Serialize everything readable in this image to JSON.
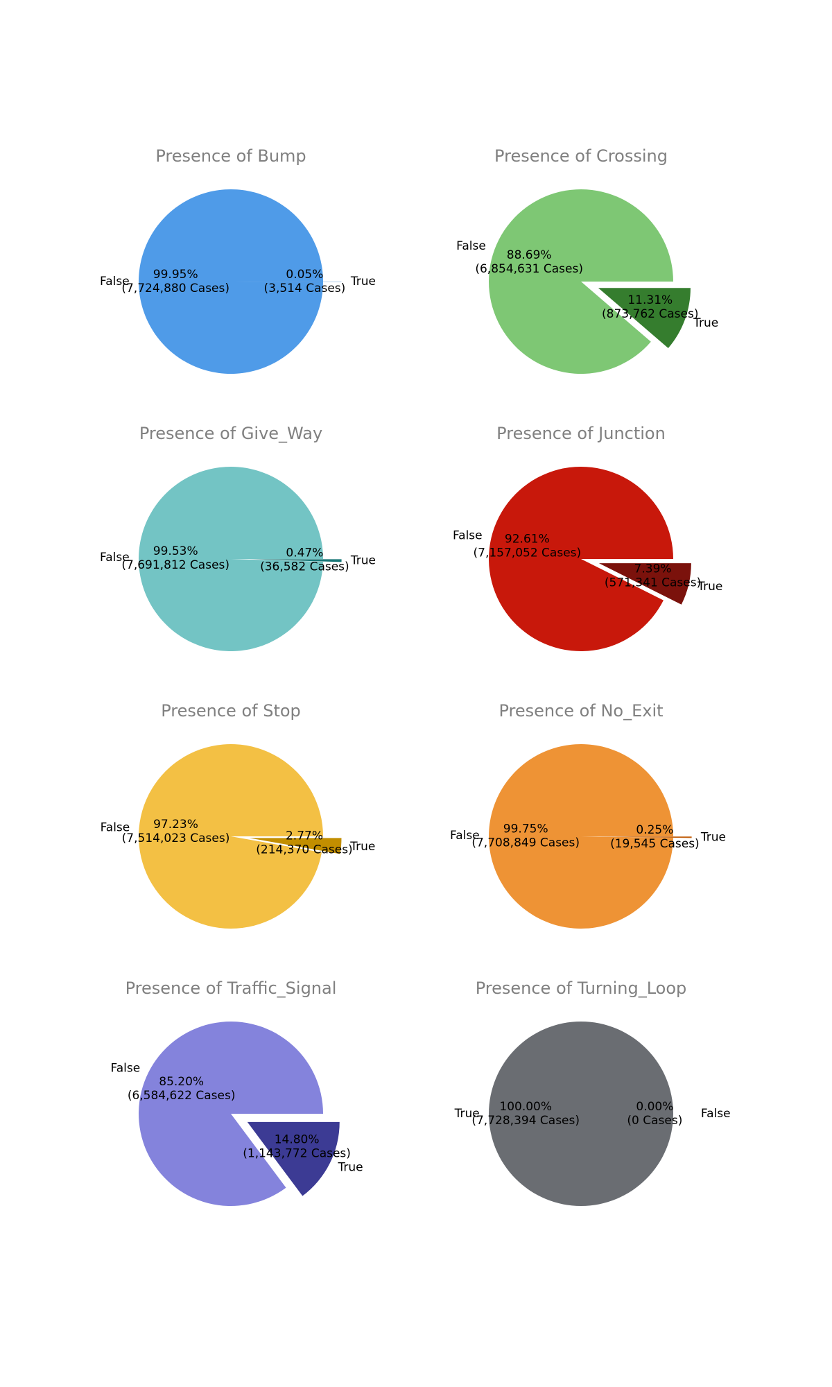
{
  "chart_data": [
    {
      "type": "pie",
      "title": "Presence of Bump",
      "slices": [
        {
          "label": "False",
          "value": 7724880,
          "pct_text": "99.95%",
          "cases_text": "(7,724,880 Cases)",
          "color": "#4f9be8",
          "exploded": false
        },
        {
          "label": "True",
          "value": 3514,
          "pct_text": "0.05%",
          "cases_text": "(3,514 Cases)",
          "color": "#1f6fc4",
          "exploded": true
        }
      ]
    },
    {
      "type": "pie",
      "title": "Presence of Crossing",
      "slices": [
        {
          "label": "False",
          "value": 6854631,
          "pct_text": "88.69%",
          "cases_text": "(6,854,631 Cases)",
          "color": "#7ec774",
          "exploded": false
        },
        {
          "label": "True",
          "value": 873762,
          "pct_text": "11.31%",
          "cases_text": "(873,762 Cases)",
          "color": "#357d2e",
          "exploded": true
        }
      ]
    },
    {
      "type": "pie",
      "title": "Presence of Give_Way",
      "slices": [
        {
          "label": "False",
          "value": 7691812,
          "pct_text": "99.53%",
          "cases_text": "(7,691,812 Cases)",
          "color": "#73c4c4",
          "exploded": false
        },
        {
          "label": "True",
          "value": 36582,
          "pct_text": "0.47%",
          "cases_text": "(36,582 Cases)",
          "color": "#197878",
          "exploded": true
        }
      ]
    },
    {
      "type": "pie",
      "title": "Presence of Junction",
      "slices": [
        {
          "label": "False",
          "value": 7157052,
          "pct_text": "92.61%",
          "cases_text": "(7,157,052 Cases)",
          "color": "#c8180b",
          "exploded": false
        },
        {
          "label": "True",
          "value": 571341,
          "pct_text": "7.39%",
          "cases_text": "(571,341 Cases)",
          "color": "#7b120c",
          "exploded": true
        }
      ]
    },
    {
      "type": "pie",
      "title": "Presence of Stop",
      "slices": [
        {
          "label": "False",
          "value": 7514023,
          "pct_text": "97.23%",
          "cases_text": "(7,514,023 Cases)",
          "color": "#f3c044",
          "exploded": false
        },
        {
          "label": "True",
          "value": 214370,
          "pct_text": "2.77%",
          "cases_text": "(214,370 Cases)",
          "color": "#c28e00",
          "exploded": true
        }
      ]
    },
    {
      "type": "pie",
      "title": "Presence of No_Exit",
      "slices": [
        {
          "label": "False",
          "value": 7708849,
          "pct_text": "99.75%",
          "cases_text": "(7,708,849 Cases)",
          "color": "#ee9335",
          "exploded": false
        },
        {
          "label": "True",
          "value": 19545,
          "pct_text": "0.25%",
          "cases_text": "(19,545 Cases)",
          "color": "#c2600f",
          "exploded": true
        }
      ]
    },
    {
      "type": "pie",
      "title": "Presence of Traffic_Signal",
      "slices": [
        {
          "label": "False",
          "value": 6584622,
          "pct_text": "85.20%",
          "cases_text": "(6,584,622 Cases)",
          "color": "#8483dc",
          "exploded": false
        },
        {
          "label": "True",
          "value": 1143772,
          "pct_text": "14.80%",
          "cases_text": "(1,143,772 Cases)",
          "color": "#3c3b94",
          "exploded": true
        }
      ]
    },
    {
      "type": "pie",
      "title": "Presence of Turning_Loop",
      "slices": [
        {
          "label": "True",
          "value": 7728394,
          "pct_text": "100.00%",
          "cases_text": "(7,728,394 Cases)",
          "color": "#6a6d72",
          "exploded": false
        },
        {
          "label": "False",
          "value": 0,
          "pct_text": "0.00%",
          "cases_text": "(0 Cases)",
          "color": "#3a3d42",
          "exploded": true
        }
      ]
    }
  ]
}
